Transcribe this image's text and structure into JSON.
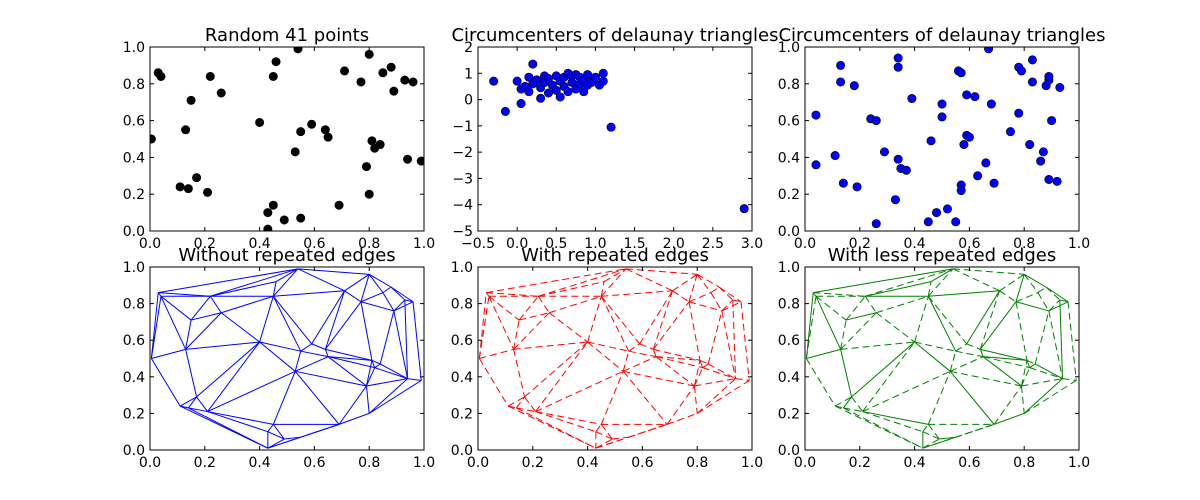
{
  "chart_data": [
    {
      "type": "scatter",
      "title": "Random 41 points",
      "xlim": [
        0,
        1
      ],
      "ylim": [
        0,
        1
      ],
      "xticks": [
        "0.0",
        "0.2",
        "0.4",
        "0.6",
        "0.8",
        "1.0"
      ],
      "yticks": [
        "0.0",
        "0.2",
        "0.4",
        "0.6",
        "0.8",
        "1.0"
      ],
      "xtick_values": [
        0,
        0.2,
        0.4,
        0.6,
        0.8,
        1.0
      ],
      "ytick_values": [
        0,
        0.2,
        0.4,
        0.6,
        0.8,
        1.0
      ],
      "marker_color": "#000000",
      "points": [
        [
          0.005,
          0.5
        ],
        [
          0.03,
          0.86
        ],
        [
          0.04,
          0.84
        ],
        [
          0.11,
          0.24
        ],
        [
          0.13,
          0.55
        ],
        [
          0.14,
          0.23
        ],
        [
          0.15,
          0.71
        ],
        [
          0.17,
          0.29
        ],
        [
          0.21,
          0.21
        ],
        [
          0.22,
          0.84
        ],
        [
          0.26,
          0.75
        ],
        [
          0.4,
          0.59
        ],
        [
          0.43,
          0.1
        ],
        [
          0.43,
          0.01
        ],
        [
          0.45,
          0.14
        ],
        [
          0.45,
          0.84
        ],
        [
          0.46,
          0.92
        ],
        [
          0.49,
          0.06
        ],
        [
          0.53,
          0.43
        ],
        [
          0.54,
          0.99
        ],
        [
          0.55,
          0.54
        ],
        [
          0.55,
          0.07
        ],
        [
          0.59,
          0.58
        ],
        [
          0.64,
          0.55
        ],
        [
          0.65,
          0.51
        ],
        [
          0.69,
          0.14
        ],
        [
          0.71,
          0.87
        ],
        [
          0.77,
          0.81
        ],
        [
          0.79,
          0.35
        ],
        [
          0.8,
          0.96
        ],
        [
          0.8,
          0.2
        ],
        [
          0.81,
          0.49
        ],
        [
          0.82,
          0.45
        ],
        [
          0.84,
          0.47
        ],
        [
          0.85,
          0.86
        ],
        [
          0.88,
          0.89
        ],
        [
          0.89,
          0.76
        ],
        [
          0.93,
          0.82
        ],
        [
          0.94,
          0.39
        ],
        [
          0.96,
          0.81
        ],
        [
          0.99,
          0.38
        ]
      ]
    },
    {
      "type": "scatter",
      "title": "Circumcenters of delaunay triangles",
      "xlim": [
        -0.5,
        3.0
      ],
      "ylim": [
        -5,
        2
      ],
      "xticks": [
        "−0.5",
        "0.0",
        "0.5",
        "1.0",
        "1.5",
        "2.0",
        "2.5",
        "3.0"
      ],
      "yticks": [
        "−5",
        "−4",
        "−3",
        "−2",
        "−1",
        "0",
        "1",
        "2"
      ],
      "xtick_values": [
        -0.5,
        0,
        0.5,
        1.0,
        1.5,
        2.0,
        2.5,
        3.0
      ],
      "ytick_values": [
        -5,
        -4,
        -3,
        -2,
        -1,
        0,
        1,
        2
      ],
      "marker_color": "#0000ff",
      "points": [
        [
          -0.3,
          0.7
        ],
        [
          -0.15,
          -0.45
        ],
        [
          0.0,
          0.7
        ],
        [
          0.05,
          0.4
        ],
        [
          0.05,
          -0.15
        ],
        [
          0.1,
          0.5
        ],
        [
          0.15,
          0.85
        ],
        [
          0.15,
          0.3
        ],
        [
          0.2,
          1.35
        ],
        [
          0.2,
          0.6
        ],
        [
          0.25,
          0.75
        ],
        [
          0.3,
          0.05
        ],
        [
          0.3,
          0.45
        ],
        [
          0.35,
          0.9
        ],
        [
          0.35,
          0.65
        ],
        [
          0.4,
          0.25
        ],
        [
          0.4,
          0.8
        ],
        [
          0.45,
          0.55
        ],
        [
          0.5,
          0.9
        ],
        [
          0.5,
          0.35
        ],
        [
          0.55,
          0.7
        ],
        [
          0.55,
          0.1
        ],
        [
          0.6,
          0.85
        ],
        [
          0.6,
          0.5
        ],
        [
          0.65,
          1.0
        ],
        [
          0.65,
          0.3
        ],
        [
          0.7,
          0.65
        ],
        [
          0.7,
          0.9
        ],
        [
          0.75,
          0.4
        ],
        [
          0.75,
          0.95
        ],
        [
          0.8,
          0.6
        ],
        [
          0.8,
          0.85
        ],
        [
          0.85,
          0.3
        ],
        [
          0.85,
          0.75
        ],
        [
          0.9,
          0.95
        ],
        [
          0.9,
          0.55
        ],
        [
          0.95,
          0.65
        ],
        [
          1.0,
          0.85
        ],
        [
          1.05,
          0.55
        ],
        [
          1.1,
          0.7
        ],
        [
          1.1,
          1.0
        ],
        [
          1.2,
          -1.05
        ],
        [
          2.9,
          -4.15
        ]
      ]
    },
    {
      "type": "scatter",
      "title": "Circumcenters of delaunay triangles",
      "xlim": [
        0,
        1
      ],
      "ylim": [
        0,
        1
      ],
      "xticks": [
        "0.0",
        "0.2",
        "0.4",
        "0.6",
        "0.8",
        "1.0"
      ],
      "yticks": [
        "0.0",
        "0.2",
        "0.4",
        "0.6",
        "0.8",
        "1.0"
      ],
      "xtick_values": [
        0,
        0.2,
        0.4,
        0.6,
        0.8,
        1.0
      ],
      "ytick_values": [
        0,
        0.2,
        0.4,
        0.6,
        0.8,
        1.0
      ],
      "marker_color": "#0000ff",
      "points": [
        [
          0.04,
          0.63
        ],
        [
          0.04,
          0.36
        ],
        [
          0.11,
          0.41
        ],
        [
          0.13,
          0.9
        ],
        [
          0.13,
          0.81
        ],
        [
          0.14,
          0.26
        ],
        [
          0.18,
          0.79
        ],
        [
          0.19,
          0.24
        ],
        [
          0.24,
          0.61
        ],
        [
          0.26,
          0.6
        ],
        [
          0.26,
          0.04
        ],
        [
          0.29,
          0.43
        ],
        [
          0.33,
          0.17
        ],
        [
          0.34,
          0.94
        ],
        [
          0.34,
          0.89
        ],
        [
          0.34,
          0.39
        ],
        [
          0.35,
          0.34
        ],
        [
          0.37,
          0.33
        ],
        [
          0.39,
          0.72
        ],
        [
          0.45,
          0.05
        ],
        [
          0.46,
          0.49
        ],
        [
          0.48,
          0.1
        ],
        [
          0.5,
          0.69
        ],
        [
          0.5,
          0.62
        ],
        [
          0.52,
          0.12
        ],
        [
          0.55,
          0.05
        ],
        [
          0.56,
          0.87
        ],
        [
          0.57,
          0.86
        ],
        [
          0.57,
          0.25
        ],
        [
          0.57,
          0.22
        ],
        [
          0.58,
          0.47
        ],
        [
          0.59,
          0.74
        ],
        [
          0.59,
          0.52
        ],
        [
          0.6,
          0.51
        ],
        [
          0.62,
          0.73
        ],
        [
          0.63,
          0.3
        ],
        [
          0.66,
          0.37
        ],
        [
          0.67,
          0.99
        ],
        [
          0.68,
          0.69
        ],
        [
          0.69,
          0.26
        ],
        [
          0.75,
          0.54
        ],
        [
          0.78,
          0.64
        ],
        [
          0.78,
          0.89
        ],
        [
          0.79,
          0.87
        ],
        [
          0.82,
          0.47
        ],
        [
          0.83,
          0.93
        ],
        [
          0.83,
          0.81
        ],
        [
          0.86,
          0.38
        ],
        [
          0.87,
          0.43
        ],
        [
          0.88,
          0.79
        ],
        [
          0.89,
          0.82
        ],
        [
          0.89,
          0.84
        ],
        [
          0.89,
          0.28
        ],
        [
          0.9,
          0.6
        ],
        [
          0.92,
          0.27
        ],
        [
          0.93,
          0.78
        ]
      ]
    },
    {
      "type": "line",
      "title": "Without repeated edges",
      "xlim": [
        0,
        1
      ],
      "ylim": [
        0,
        1
      ],
      "xticks": [
        "0.0",
        "0.2",
        "0.4",
        "0.6",
        "0.8",
        "1.0"
      ],
      "yticks": [
        "0.0",
        "0.2",
        "0.4",
        "0.6",
        "0.8",
        "1.0"
      ],
      "xtick_values": [
        0,
        0.2,
        0.4,
        0.6,
        0.8,
        1.0
      ],
      "ytick_values": [
        0,
        0.2,
        0.4,
        0.6,
        0.8,
        1.0
      ],
      "color": "#0000ff",
      "style": "solid"
    },
    {
      "type": "line",
      "title": "With repeated edges",
      "xlim": [
        0,
        1
      ],
      "ylim": [
        0,
        1
      ],
      "xticks": [
        "0.0",
        "0.2",
        "0.4",
        "0.6",
        "0.8",
        "1.0"
      ],
      "yticks": [
        "0.0",
        "0.2",
        "0.4",
        "0.6",
        "0.8",
        "1.0"
      ],
      "xtick_values": [
        0,
        0.2,
        0.4,
        0.6,
        0.8,
        1.0
      ],
      "ytick_values": [
        0,
        0.2,
        0.4,
        0.6,
        0.8,
        1.0
      ],
      "color": "#ff0000",
      "style": "dashed"
    },
    {
      "type": "line",
      "title": "With less repeated edges",
      "xlim": [
        0,
        1
      ],
      "ylim": [
        0,
        1
      ],
      "xticks": [
        "0.0",
        "0.2",
        "0.4",
        "0.6",
        "0.8",
        "1.0"
      ],
      "yticks": [
        "0.0",
        "0.2",
        "0.4",
        "0.6",
        "0.8",
        "1.0"
      ],
      "xtick_values": [
        0,
        0.2,
        0.4,
        0.6,
        0.8,
        1.0
      ],
      "ytick_values": [
        0,
        0.2,
        0.4,
        0.6,
        0.8,
        1.0
      ],
      "color": "#008000",
      "style": "dashed"
    }
  ],
  "triangulation": {
    "points": [
      [
        0.005,
        0.5
      ],
      [
        0.03,
        0.86
      ],
      [
        0.04,
        0.84
      ],
      [
        0.11,
        0.24
      ],
      [
        0.13,
        0.55
      ],
      [
        0.14,
        0.23
      ],
      [
        0.15,
        0.71
      ],
      [
        0.17,
        0.29
      ],
      [
        0.21,
        0.21
      ],
      [
        0.22,
        0.84
      ],
      [
        0.26,
        0.75
      ],
      [
        0.4,
        0.59
      ],
      [
        0.43,
        0.1
      ],
      [
        0.43,
        0.01
      ],
      [
        0.45,
        0.14
      ],
      [
        0.45,
        0.84
      ],
      [
        0.46,
        0.92
      ],
      [
        0.49,
        0.06
      ],
      [
        0.53,
        0.43
      ],
      [
        0.54,
        0.99
      ],
      [
        0.55,
        0.54
      ],
      [
        0.55,
        0.07
      ],
      [
        0.59,
        0.58
      ],
      [
        0.64,
        0.55
      ],
      [
        0.65,
        0.51
      ],
      [
        0.69,
        0.14
      ],
      [
        0.71,
        0.87
      ],
      [
        0.77,
        0.81
      ],
      [
        0.79,
        0.35
      ],
      [
        0.8,
        0.96
      ],
      [
        0.8,
        0.2
      ],
      [
        0.81,
        0.49
      ],
      [
        0.82,
        0.45
      ],
      [
        0.84,
        0.47
      ],
      [
        0.85,
        0.86
      ],
      [
        0.88,
        0.89
      ],
      [
        0.89,
        0.76
      ],
      [
        0.93,
        0.82
      ],
      [
        0.94,
        0.39
      ],
      [
        0.96,
        0.81
      ],
      [
        0.99,
        0.38
      ]
    ],
    "edges": [
      [
        0,
        1
      ],
      [
        0,
        2
      ],
      [
        0,
        3
      ],
      [
        0,
        4
      ],
      [
        1,
        2
      ],
      [
        1,
        9
      ],
      [
        1,
        19
      ],
      [
        2,
        6
      ],
      [
        2,
        9
      ],
      [
        2,
        4
      ],
      [
        4,
        6
      ],
      [
        6,
        9
      ],
      [
        6,
        10
      ],
      [
        4,
        10
      ],
      [
        4,
        11
      ],
      [
        4,
        7
      ],
      [
        3,
        7
      ],
      [
        3,
        5
      ],
      [
        5,
        7
      ],
      [
        5,
        8
      ],
      [
        7,
        8
      ],
      [
        7,
        11
      ],
      [
        8,
        11
      ],
      [
        8,
        12
      ],
      [
        8,
        14
      ],
      [
        3,
        13
      ],
      [
        5,
        13
      ],
      [
        12,
        13
      ],
      [
        12,
        14
      ],
      [
        13,
        17
      ],
      [
        13,
        21
      ],
      [
        14,
        17
      ],
      [
        12,
        17
      ],
      [
        17,
        21
      ],
      [
        14,
        18
      ],
      [
        8,
        18
      ],
      [
        11,
        18
      ],
      [
        9,
        10
      ],
      [
        10,
        11
      ],
      [
        9,
        15
      ],
      [
        10,
        15
      ],
      [
        11,
        15
      ],
      [
        9,
        16
      ],
      [
        15,
        16
      ],
      [
        9,
        19
      ],
      [
        16,
        19
      ],
      [
        15,
        19
      ],
      [
        11,
        20
      ],
      [
        15,
        20
      ],
      [
        18,
        20
      ],
      [
        19,
        26
      ],
      [
        15,
        26
      ],
      [
        20,
        22
      ],
      [
        15,
        22
      ],
      [
        22,
        26
      ],
      [
        22,
        23
      ],
      [
        23,
        26
      ],
      [
        23,
        24
      ],
      [
        20,
        24
      ],
      [
        18,
        24
      ],
      [
        24,
        28
      ],
      [
        18,
        28
      ],
      [
        14,
        25
      ],
      [
        18,
        25
      ],
      [
        21,
        25
      ],
      [
        25,
        28
      ],
      [
        25,
        30
      ],
      [
        13,
        25
      ],
      [
        26,
        27
      ],
      [
        23,
        27
      ],
      [
        26,
        29
      ],
      [
        19,
        29
      ],
      [
        27,
        29
      ],
      [
        27,
        34
      ],
      [
        29,
        34
      ],
      [
        29,
        35
      ],
      [
        34,
        35
      ],
      [
        35,
        37
      ],
      [
        35,
        39
      ],
      [
        37,
        39
      ],
      [
        34,
        36
      ],
      [
        27,
        36
      ],
      [
        36,
        37
      ],
      [
        27,
        31
      ],
      [
        24,
        31
      ],
      [
        31,
        32
      ],
      [
        28,
        32
      ],
      [
        32,
        33
      ],
      [
        31,
        33
      ],
      [
        33,
        36
      ],
      [
        33,
        38
      ],
      [
        32,
        38
      ],
      [
        28,
        38
      ],
      [
        30,
        38
      ],
      [
        28,
        30
      ],
      [
        36,
        38
      ],
      [
        37,
        38
      ],
      [
        38,
        40
      ],
      [
        39,
        40
      ],
      [
        36,
        39
      ],
      [
        30,
        40
      ],
      [
        28,
        31
      ],
      [
        23,
        31
      ],
      [
        24,
        32
      ]
    ]
  }
}
